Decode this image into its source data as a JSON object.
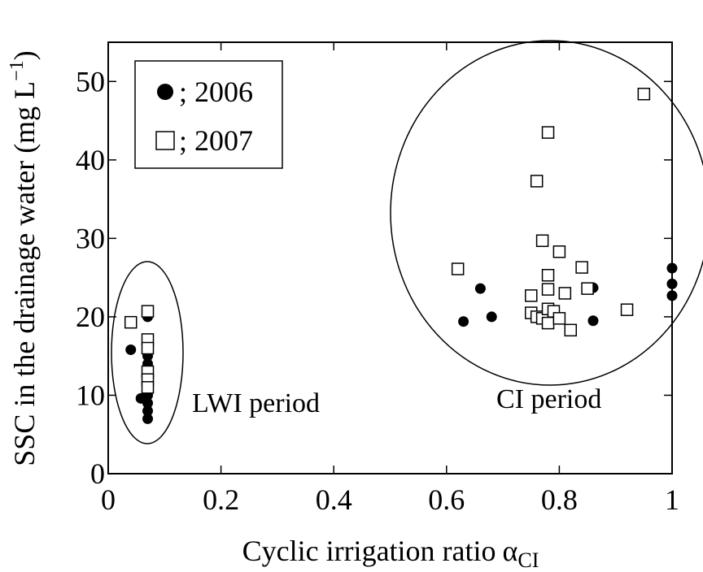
{
  "chart_data": {
    "type": "scatter",
    "xlabel": {
      "text": "Cyclic irrigation ratio",
      "symbol": "α",
      "subscript": "CI"
    },
    "ylabel": {
      "text": "SSC in the drainage water (mg L",
      "superscript": "−1",
      "close": ")"
    },
    "xlim": [
      0,
      1
    ],
    "ylim": [
      0,
      55
    ],
    "xticks": [
      0,
      0.2,
      0.4,
      0.6,
      0.8,
      1
    ],
    "yticks": [
      0,
      10,
      20,
      30,
      40,
      50
    ],
    "annotations": [
      "LWI period",
      "CI period"
    ],
    "series": [
      {
        "name": "; 2006",
        "marker": "filled",
        "color": "#000000",
        "x": [
          0.04,
          0.058,
          0.07,
          0.07,
          0.07,
          0.07,
          0.07,
          0.07,
          0.07,
          0.07,
          0.07,
          0.07,
          0.63,
          0.66,
          0.68,
          0.86,
          0.86,
          1,
          1,
          1
        ],
        "values": [
          15.8,
          9.6,
          20.0,
          7.0,
          8.0,
          9.0,
          10.0,
          11.0,
          12.0,
          13.0,
          14.0,
          15.0,
          19.4,
          23.6,
          20.0,
          23.7,
          19.5,
          26.2,
          24.2,
          22.7
        ]
      },
      {
        "name": "; 2007",
        "marker": "open",
        "color": "#000000",
        "x": [
          0.04,
          0.07,
          0.07,
          0.07,
          0.07,
          0.07,
          0.07,
          0.62,
          0.75,
          0.75,
          0.76,
          0.76,
          0.77,
          0.77,
          0.78,
          0.78,
          0.78,
          0.78,
          0.78,
          0.79,
          0.8,
          0.8,
          0.81,
          0.82,
          0.84,
          0.85,
          0.92,
          0.95
        ],
        "values": [
          19.3,
          20.7,
          17.1,
          16.0,
          13.0,
          12.0,
          11.0,
          26.1,
          22.7,
          20.5,
          20.0,
          37.3,
          19.8,
          29.7,
          43.5,
          25.3,
          23.5,
          21.0,
          19.2,
          20.7,
          28.3,
          19.8,
          23.0,
          18.3,
          26.3,
          23.6,
          20.9,
          48.4
        ]
      }
    ]
  }
}
